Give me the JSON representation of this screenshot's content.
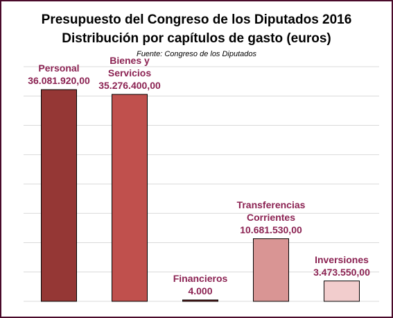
{
  "chart": {
    "title_line1": "Presupuesto del Congreso de los Diputados 2016",
    "title_line2": "Distribución por capítulos de gasto (euros)",
    "source": "Fuente: Congreso de los Diputados"
  },
  "chart_data": {
    "type": "bar",
    "title": "Presupuesto del Congreso de los Diputados 2016 — Distribución por capítulos de gasto (euros)",
    "subtitle": "Fuente: Congreso de los Diputados",
    "categories": [
      "Personal",
      "Bienes y Servicios",
      "Financieros",
      "Transferencias Corrientes",
      "Inversiones"
    ],
    "category_label_lines": [
      [
        "Personal"
      ],
      [
        "Bienes y",
        "Servicios"
      ],
      [
        "Financieros"
      ],
      [
        "Transferencias",
        "Corrientes"
      ],
      [
        "Inversiones"
      ]
    ],
    "values": [
      36081920.0,
      35276400.0,
      4000,
      10681530.0,
      3473550.0
    ],
    "value_labels": [
      "36.081.920,00",
      "35.276.400,00",
      "4.000",
      "10.681.530,00",
      "3.473.550,00"
    ],
    "bar_colors": [
      "#953735",
      "#c0504d",
      "#6b1a1a",
      "#d99594",
      "#f2cdcd"
    ],
    "label_color": "#8b2252",
    "ylim": [
      0,
      40000000
    ],
    "gridline_step": 5000000,
    "grid": true,
    "legend": "none",
    "xlabel": "",
    "ylabel": ""
  }
}
